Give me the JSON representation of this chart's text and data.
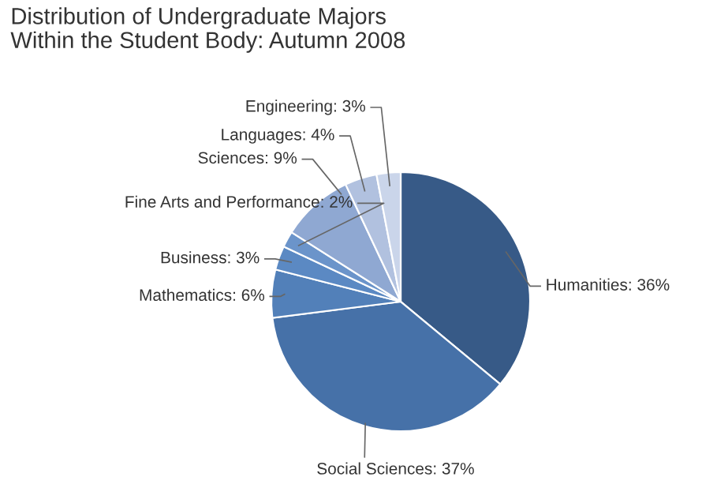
{
  "chart_data": {
    "type": "pie",
    "title": "Distribution of Undergraduate Majors\nWithin the Student Body: Autumn 2008",
    "categories": [
      "Humanities",
      "Social Sciences",
      "Mathematics",
      "Business",
      "Fine Arts and Performance",
      "Sciences",
      "Languages",
      "Engineering"
    ],
    "values": [
      36,
      37,
      6,
      3,
      2,
      9,
      4,
      3
    ],
    "value_labels": [
      "36%",
      "37%",
      "6%",
      "3%",
      "2%",
      "9%",
      "4%",
      "3%"
    ],
    "colors": [
      "#375a87",
      "#4671a8",
      "#5280b9",
      "#5b89c3",
      "#6b94ca",
      "#8fa8d2",
      "#b1c1df",
      "#cad5ea"
    ],
    "legend": false
  }
}
